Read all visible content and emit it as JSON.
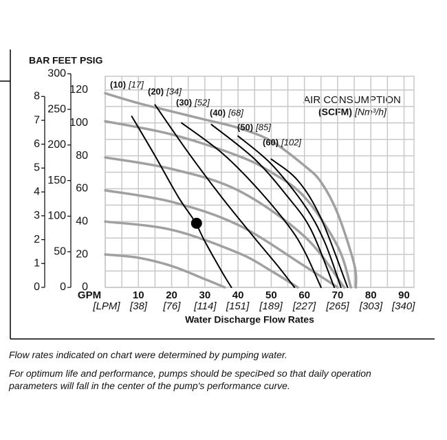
{
  "chart_data": {
    "type": "line",
    "axis_labels": {
      "bar": "BAR",
      "feet": "FEET",
      "psig": "PSIG",
      "gpm": "GPM",
      "lpm": "[LPM]"
    },
    "xlabel": "Water Discharge Flow Rates",
    "xlim": [
      0,
      93
    ],
    "xticks": [
      10,
      20,
      30,
      40,
      50,
      60,
      70,
      80,
      90
    ],
    "x2lim": [
      0,
      352
    ],
    "x2ticks": [
      {
        "value": 38,
        "label": "[38]"
      },
      {
        "value": 76,
        "label": "[76]"
      },
      {
        "value": 114,
        "label": "[114]"
      },
      {
        "value": 151,
        "label": "[151]"
      },
      {
        "value": 189,
        "label": "[189]"
      },
      {
        "value": 227,
        "label": "[227]"
      },
      {
        "value": 265,
        "label": "[265]"
      },
      {
        "value": 303,
        "label": "[303]"
      },
      {
        "value": 340,
        "label": "[340]"
      }
    ],
    "ylim": [
      0,
      130
    ],
    "yticks": [
      0,
      20,
      40,
      60,
      80,
      100,
      120
    ],
    "feet_lim": [
      0,
      300.3
    ],
    "feet_ticks": [
      0,
      50,
      100,
      150,
      200,
      250,
      300
    ],
    "bar_lim": [
      0,
      8.96
    ],
    "bar_ticks": [
      0,
      1,
      2,
      3,
      4,
      5,
      6,
      7,
      8
    ],
    "xgrid": [
      0,
      5,
      10,
      15,
      20,
      25,
      30,
      35,
      40,
      45,
      50,
      55,
      60,
      65,
      70,
      75,
      80,
      85,
      90
    ],
    "ygrid": [
      0,
      10,
      20,
      30,
      40,
      50,
      60,
      70,
      80,
      90,
      100,
      110,
      120
    ],
    "grid_color": "#c8c8c8",
    "legend_title": "AIR CONSUMPTION",
    "legend_unit": "(SCFM)",
    "legend_unit_metric": "[Nm³/h]",
    "pressure_curves": [
      {
        "color": "#a0a0a0",
        "x": [
          0,
          10,
          20,
          30,
          40,
          50,
          60,
          65,
          70,
          75,
          75.5
        ],
        "values": [
          118,
          112,
          107,
          102,
          97,
          89,
          74,
          64,
          45,
          14,
          0
        ]
      },
      {
        "color": "#a0a0a0",
        "x": [
          0,
          20,
          40,
          50,
          60,
          70,
          74
        ],
        "values": [
          101,
          93,
          80,
          70,
          55,
          25,
          0
        ]
      },
      {
        "color": "#a0a0a0",
        "x": [
          0,
          20,
          40,
          60,
          72
        ],
        "values": [
          79,
          72,
          59,
          31,
          0
        ]
      },
      {
        "color": "#a0a0a0",
        "x": [
          0,
          20,
          40,
          60,
          70
        ],
        "values": [
          59,
          52,
          38,
          13,
          0
        ]
      },
      {
        "color": "#a0a0a0",
        "x": [
          0,
          20,
          40,
          50,
          58
        ],
        "values": [
          40,
          35,
          21,
          10,
          0
        ]
      },
      {
        "color": "#a0a0a0",
        "x": [
          0,
          10,
          20,
          30,
          36
        ],
        "values": [
          20,
          18,
          13,
          5,
          0
        ]
      }
    ],
    "series": [
      {
        "name": "(10)",
        "metric": "[17]",
        "color": "#000000",
        "x": [
          8,
          15,
          22,
          27,
          30,
          35,
          38
        ],
        "values": [
          104,
          80,
          55,
          40,
          28,
          10,
          0
        ]
      },
      {
        "name": "(20)",
        "metric": "[34]",
        "color": "#000000",
        "x": [
          15,
          25,
          35,
          45,
          52,
          57
        ],
        "values": [
          111,
          82,
          55,
          30,
          13,
          0
        ]
      },
      {
        "name": "(30)",
        "metric": "[52]",
        "color": "#000000",
        "x": [
          23,
          35,
          45,
          55,
          60,
          65
        ],
        "values": [
          100,
          82,
          62,
          38,
          22,
          0
        ]
      },
      {
        "name": "(40)",
        "metric": "[68]",
        "color": "#000000",
        "x": [
          32,
          45,
          55,
          62,
          69
        ],
        "values": [
          99,
          78,
          55,
          35,
          0
        ]
      },
      {
        "name": "(50)",
        "metric": "[85]",
        "color": "#000000",
        "x": [
          40,
          50,
          60,
          66,
          71
        ],
        "values": [
          92,
          75,
          50,
          28,
          0
        ]
      },
      {
        "name": "(60)",
        "metric": "[102]",
        "color": "#000000",
        "x": [
          50,
          58,
          65,
          73
        ],
        "values": [
          78,
          65,
          42,
          0
        ]
      }
    ],
    "point": {
      "x": 27.5,
      "y": 39,
      "color": "#000000"
    }
  },
  "notes": [
    "Flow rates indicated on chart were determined by pumping water.",
    "For optimum life and performance, pumps should be speciÞed so that daily operation parameters will fall in the center of the pump's performance curve."
  ]
}
